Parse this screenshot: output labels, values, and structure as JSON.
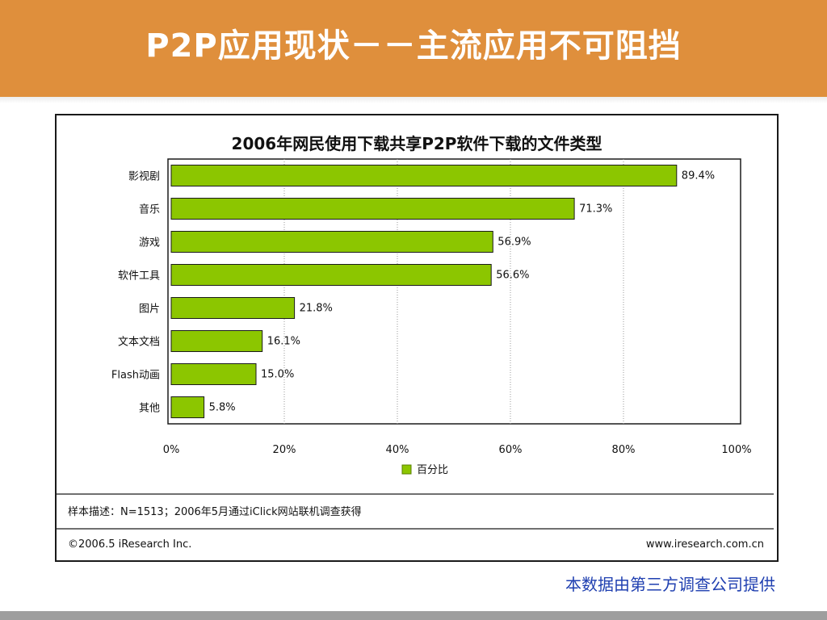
{
  "slide": {
    "title": "P2P应用现状－－主流应用不可阻挡",
    "source_note": "本数据由第三方调查公司提供"
  },
  "colors": {
    "header": "#df8f3c",
    "bar": "#8cc600",
    "source_note": "#1f3fb0"
  },
  "chart_data": {
    "type": "bar",
    "orientation": "horizontal",
    "title": "2006年网民使用下载共享P2P软件下载的文件类型",
    "categories": [
      "影视剧",
      "音乐",
      "游戏",
      "软件工具",
      "图片",
      "文本文档",
      "Flash动画",
      "其他"
    ],
    "series": [
      {
        "name": "百分比",
        "values": [
          89.4,
          71.3,
          56.9,
          56.6,
          21.8,
          16.1,
          15.0,
          5.8
        ]
      }
    ],
    "value_labels": [
      "89.4%",
      "71.3%",
      "56.9%",
      "56.6%",
      "21.8%",
      "16.1%",
      "15.0%",
      "5.8%"
    ],
    "xlim": [
      0,
      100
    ],
    "x_ticks": [
      "0%",
      "20%",
      "40%",
      "60%",
      "80%",
      "100%"
    ],
    "grid": "vertical",
    "legend_position": "bottom",
    "sample_note": "样本描述：N=1513；2006年5月通过iClick网站联机调查获得",
    "copyright": "©2006.5 iResearch Inc.",
    "website": "www.iresearch.com.cn"
  }
}
